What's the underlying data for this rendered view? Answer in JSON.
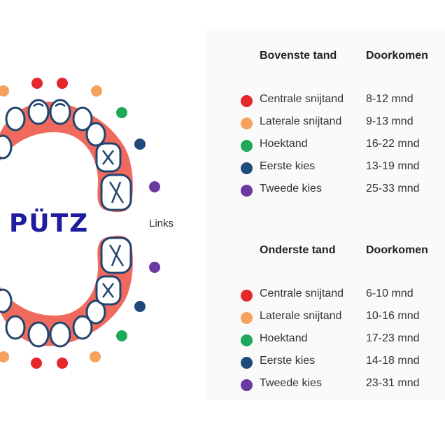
{
  "colors": {
    "gum": "#ef6a5c",
    "tooth_outline": "#23446e",
    "centrale": "#e5262b",
    "laterale": "#f4a25c",
    "hoektand": "#1ea85a",
    "eerste_kies": "#1f4a7a",
    "tweede_kies": "#6b3aa0",
    "logo": "#1d1d9e"
  },
  "logo_text": "PÜTZ",
  "side_label": "Links",
  "upper": {
    "header_tooth": "Bovenste tand",
    "header_time": "Doorkomen",
    "rows": [
      {
        "name": "Centrale snijtand",
        "time": "8-12 mnd",
        "color": "#e5262b"
      },
      {
        "name": "Laterale snijtand",
        "time": "9-13 mnd",
        "color": "#f4a25c"
      },
      {
        "name": "Hoektand",
        "time": "16-22 mnd",
        "color": "#1ea85a"
      },
      {
        "name": "Eerste kies",
        "time": "13-19 mnd",
        "color": "#1f4a7a"
      },
      {
        "name": "Tweede kies",
        "time": "25-33 mnd",
        "color": "#6b3aa0"
      }
    ]
  },
  "lower": {
    "header_tooth": "Onderste tand",
    "header_time": "Doorkomen",
    "rows": [
      {
        "name": "Centrale snijtand",
        "time": "6-10 mnd",
        "color": "#e5262b"
      },
      {
        "name": "Laterale snijtand",
        "time": "10-16 mnd",
        "color": "#f4a25c"
      },
      {
        "name": "Hoektand",
        "time": "17-23 mnd",
        "color": "#1ea85a"
      },
      {
        "name": "Eerste kies",
        "time": "14-18 mnd",
        "color": "#1f4a7a"
      },
      {
        "name": "Tweede kies",
        "time": "23-31 mnd",
        "color": "#6b3aa0"
      }
    ]
  }
}
